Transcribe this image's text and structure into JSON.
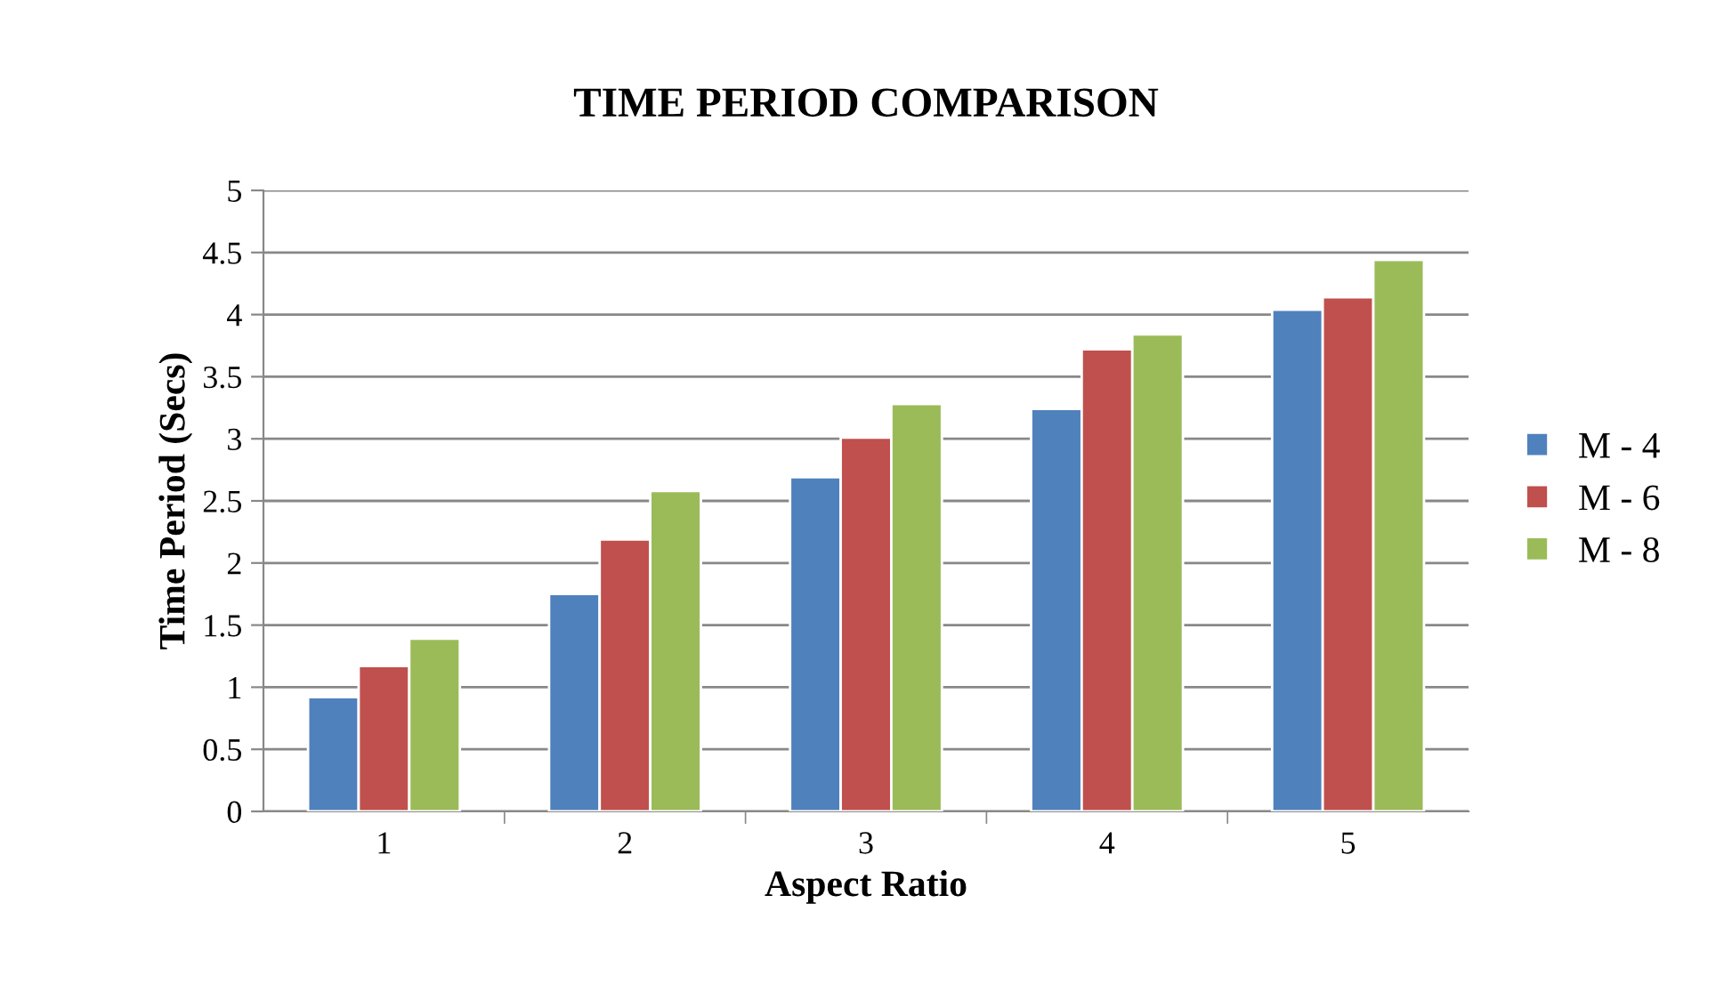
{
  "chart_data": {
    "type": "bar",
    "title": "TIME PERIOD COMPARISON",
    "xlabel": "Aspect Ratio",
    "ylabel": "Time Period (Secs)",
    "categories": [
      "1",
      "2",
      "3",
      "4",
      "5"
    ],
    "series": [
      {
        "name": "M - 4",
        "color": "#4f81bd",
        "values": [
          0.92,
          1.75,
          2.69,
          3.24,
          4.04
        ]
      },
      {
        "name": "M - 6",
        "color": "#c0504d",
        "values": [
          1.17,
          2.19,
          3.01,
          3.72,
          4.14
        ]
      },
      {
        "name": "M - 8",
        "color": "#9bbb59",
        "values": [
          1.39,
          2.58,
          3.28,
          3.84,
          4.44
        ]
      }
    ],
    "ylim": [
      0,
      5
    ],
    "yticks": [
      0,
      0.5,
      1,
      1.5,
      2,
      2.5,
      3,
      3.5,
      4,
      4.5,
      5
    ],
    "grid": "y",
    "legend": "right"
  }
}
